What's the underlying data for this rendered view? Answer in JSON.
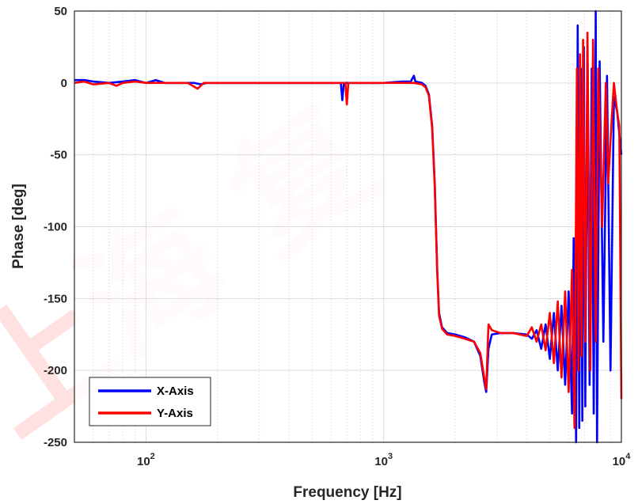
{
  "chart_data": {
    "type": "line",
    "xscale": "log",
    "xlim": [
      50,
      10000
    ],
    "ylim": [
      -250,
      50
    ],
    "xlabel": "Frequency [Hz]",
    "ylabel": "Phase [deg]",
    "y_ticks": [
      50,
      0,
      -50,
      -100,
      -150,
      -200,
      -250
    ],
    "x_ticks": [
      {
        "value": 100,
        "base": "10",
        "exp": "2"
      },
      {
        "value": 1000,
        "base": "10",
        "exp": "3"
      },
      {
        "value": 10000,
        "base": "10",
        "exp": "4"
      }
    ],
    "grid": true,
    "minor_grid": true,
    "legend_position": "bottom-left",
    "series": [
      {
        "name": "X-Axis",
        "color": "#0000ff",
        "points": [
          [
            50,
            2
          ],
          [
            55,
            2
          ],
          [
            60,
            1
          ],
          [
            70,
            0
          ],
          [
            80,
            1
          ],
          [
            90,
            2
          ],
          [
            100,
            0
          ],
          [
            110,
            2
          ],
          [
            120,
            0
          ],
          [
            140,
            0
          ],
          [
            160,
            0
          ],
          [
            170,
            -1
          ],
          [
            180,
            0
          ],
          [
            200,
            0
          ],
          [
            250,
            0
          ],
          [
            300,
            0
          ],
          [
            400,
            0
          ],
          [
            500,
            0
          ],
          [
            600,
            0
          ],
          [
            660,
            0
          ],
          [
            670,
            -12
          ],
          [
            680,
            0
          ],
          [
            700,
            0
          ],
          [
            800,
            0
          ],
          [
            1000,
            0
          ],
          [
            1200,
            1
          ],
          [
            1300,
            1
          ],
          [
            1340,
            5
          ],
          [
            1360,
            1
          ],
          [
            1450,
            0
          ],
          [
            1500,
            -2
          ],
          [
            1550,
            -8
          ],
          [
            1600,
            -30
          ],
          [
            1640,
            -70
          ],
          [
            1680,
            -130
          ],
          [
            1710,
            -160
          ],
          [
            1760,
            -170
          ],
          [
            1850,
            -174
          ],
          [
            2000,
            -175
          ],
          [
            2200,
            -177
          ],
          [
            2400,
            -180
          ],
          [
            2550,
            -190
          ],
          [
            2650,
            -208
          ],
          [
            2700,
            -215
          ],
          [
            2760,
            -185
          ],
          [
            2850,
            -175
          ],
          [
            3100,
            -174
          ],
          [
            3500,
            -174
          ],
          [
            4000,
            -175
          ],
          [
            4200,
            -178
          ],
          [
            4400,
            -172
          ],
          [
            4600,
            -185
          ],
          [
            4800,
            -168
          ],
          [
            5000,
            -192
          ],
          [
            5200,
            -160
          ],
          [
            5400,
            -200
          ],
          [
            5600,
            -155
          ],
          [
            5800,
            -210
          ],
          [
            6000,
            -145
          ],
          [
            6200,
            -230
          ],
          [
            6300,
            -108
          ],
          [
            6450,
            -250
          ],
          [
            6550,
            40
          ],
          [
            6650,
            -240
          ],
          [
            6750,
            10
          ],
          [
            6850,
            -235
          ],
          [
            6950,
            25
          ],
          [
            7050,
            -225
          ],
          [
            7200,
            20
          ],
          [
            7350,
            -210
          ],
          [
            7500,
            10
          ],
          [
            7650,
            -230
          ],
          [
            7800,
            50
          ],
          [
            7900,
            -250
          ],
          [
            8100,
            15
          ],
          [
            8400,
            -180
          ],
          [
            8700,
            5
          ],
          [
            9000,
            -200
          ],
          [
            9300,
            -10
          ],
          [
            9600,
            -20
          ],
          [
            10000,
            -50
          ]
        ]
      },
      {
        "name": "Y-Axis",
        "color": "#ff0000",
        "points": [
          [
            50,
            0
          ],
          [
            55,
            1
          ],
          [
            60,
            -1
          ],
          [
            70,
            0
          ],
          [
            75,
            -2
          ],
          [
            80,
            0
          ],
          [
            90,
            1
          ],
          [
            100,
            0
          ],
          [
            120,
            0
          ],
          [
            150,
            0
          ],
          [
            165,
            -4
          ],
          [
            175,
            0
          ],
          [
            200,
            0
          ],
          [
            250,
            0
          ],
          [
            300,
            0
          ],
          [
            400,
            0
          ],
          [
            500,
            0
          ],
          [
            600,
            0
          ],
          [
            690,
            0
          ],
          [
            700,
            -15
          ],
          [
            710,
            0
          ],
          [
            800,
            0
          ],
          [
            1000,
            0
          ],
          [
            1200,
            0
          ],
          [
            1340,
            0
          ],
          [
            1450,
            -1
          ],
          [
            1500,
            -3
          ],
          [
            1550,
            -9
          ],
          [
            1600,
            -32
          ],
          [
            1640,
            -72
          ],
          [
            1680,
            -132
          ],
          [
            1710,
            -162
          ],
          [
            1760,
            -171
          ],
          [
            1850,
            -175
          ],
          [
            2000,
            -176
          ],
          [
            2200,
            -178
          ],
          [
            2400,
            -180
          ],
          [
            2550,
            -188
          ],
          [
            2650,
            -205
          ],
          [
            2700,
            -213
          ],
          [
            2760,
            -168
          ],
          [
            2850,
            -172
          ],
          [
            3100,
            -174
          ],
          [
            3500,
            -174
          ],
          [
            4000,
            -176
          ],
          [
            4200,
            -170
          ],
          [
            4400,
            -180
          ],
          [
            4600,
            -168
          ],
          [
            4800,
            -186
          ],
          [
            5000,
            -160
          ],
          [
            5200,
            -195
          ],
          [
            5400,
            -152
          ],
          [
            5600,
            -205
          ],
          [
            5800,
            -145
          ],
          [
            6000,
            -215
          ],
          [
            6200,
            -130
          ],
          [
            6350,
            -240
          ],
          [
            6500,
            10
          ],
          [
            6600,
            -200
          ],
          [
            6700,
            20
          ],
          [
            6800,
            -190
          ],
          [
            6900,
            30
          ],
          [
            7050,
            -180
          ],
          [
            7200,
            35
          ],
          [
            7400,
            -200
          ],
          [
            7600,
            30
          ],
          [
            7800,
            -180
          ],
          [
            8000,
            10
          ],
          [
            8300,
            -100
          ],
          [
            8600,
            0
          ],
          [
            8800,
            -70
          ],
          [
            9000,
            -40
          ],
          [
            9300,
            0
          ],
          [
            9600,
            -20
          ],
          [
            9800,
            -30
          ],
          [
            10000,
            -220
          ]
        ]
      }
    ]
  },
  "watermark": "上海 复"
}
